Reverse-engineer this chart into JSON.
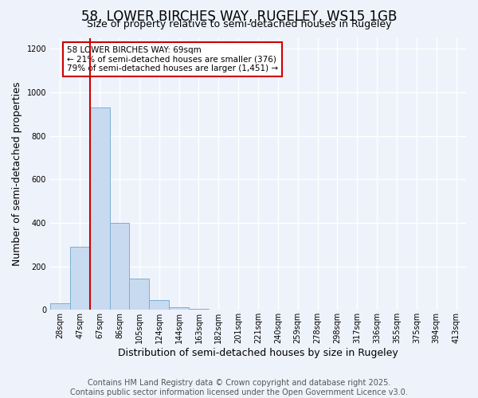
{
  "title1": "58, LOWER BIRCHES WAY, RUGELEY, WS15 1GB",
  "title2": "Size of property relative to semi-detached houses in Rugeley",
  "xlabel": "Distribution of semi-detached houses by size in Rugeley",
  "ylabel": "Number of semi-detached properties",
  "annotation_title": "58 LOWER BIRCHES WAY: 69sqm",
  "annotation_line1": "← 21% of semi-detached houses are smaller (376)",
  "annotation_line2": "79% of semi-detached houses are larger (1,451) →",
  "footer1": "Contains HM Land Registry data © Crown copyright and database right 2025.",
  "footer2": "Contains public sector information licensed under the Open Government Licence v3.0.",
  "bin_labels": [
    "28sqm",
    "47sqm",
    "67sqm",
    "86sqm",
    "105sqm",
    "124sqm",
    "144sqm",
    "163sqm",
    "182sqm",
    "201sqm",
    "221sqm",
    "240sqm",
    "259sqm",
    "278sqm",
    "298sqm",
    "317sqm",
    "336sqm",
    "355sqm",
    "375sqm",
    "394sqm",
    "413sqm"
  ],
  "bin_values": [
    30,
    290,
    930,
    400,
    145,
    45,
    12,
    5,
    0,
    0,
    0,
    0,
    0,
    0,
    0,
    0,
    0,
    0,
    0,
    0,
    0
  ],
  "bar_color": "#c8daf0",
  "bar_edge_color": "#7bafd4",
  "highlight_color": "#cc0000",
  "highlight_bin_index": 2,
  "ylim": [
    0,
    1250
  ],
  "yticks": [
    0,
    200,
    400,
    600,
    800,
    1000,
    1200
  ],
  "background_color": "#eef2fb",
  "plot_bg_color": "#eef2fb",
  "grid_color": "#ffffff",
  "annotation_box_facecolor": "#ffffff",
  "annotation_box_edgecolor": "#cc0000",
  "title_fontsize": 12,
  "subtitle_fontsize": 9,
  "tick_fontsize": 7,
  "axis_label_fontsize": 9,
  "footer_fontsize": 7
}
